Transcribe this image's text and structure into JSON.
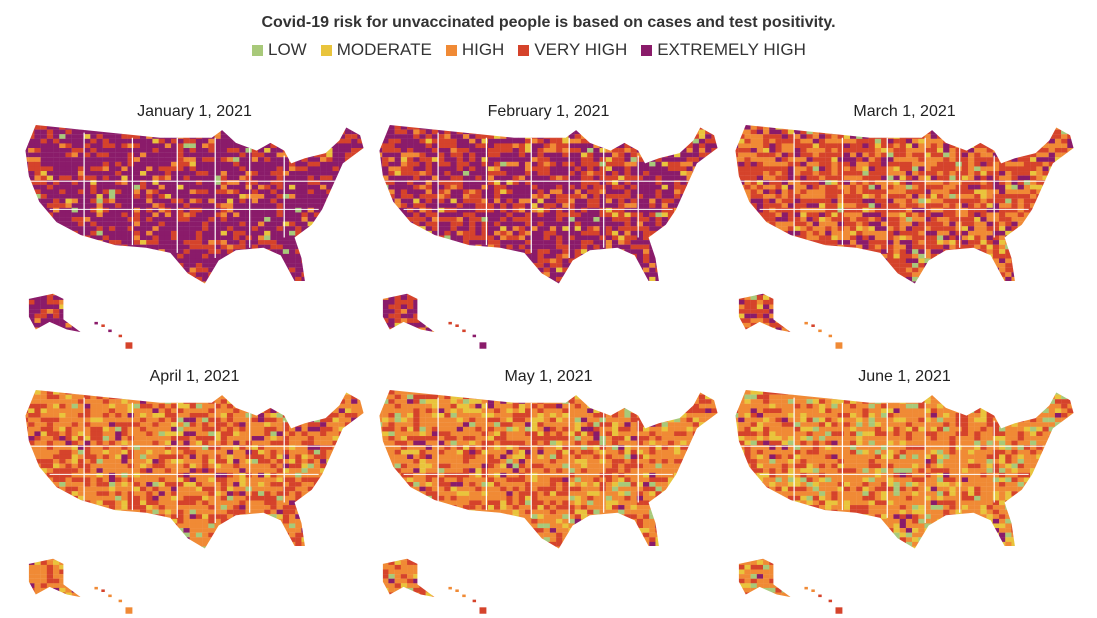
{
  "title": "Covid-19 risk for unvaccinated people is based on cases and test positivity.",
  "legend": [
    {
      "label": "LOW",
      "color": "#a8c97a"
    },
    {
      "label": "MODERATE",
      "color": "#e9c43c"
    },
    {
      "label": "HIGH",
      "color": "#f08a35"
    },
    {
      "label": "VERY HIGH",
      "color": "#d5432b"
    },
    {
      "label": "EXTREMELY HIGH",
      "color": "#8a1b6a"
    }
  ],
  "chart_data": {
    "type": "choropleth-small-multiples",
    "categories": [
      "LOW",
      "MODERATE",
      "HIGH",
      "VERY HIGH",
      "EXTREMELY HIGH"
    ],
    "maps": [
      {
        "date": "January 1, 2021",
        "approx_share": [
          0.01,
          0.02,
          0.07,
          0.25,
          0.65
        ]
      },
      {
        "date": "February 1, 2021",
        "approx_share": [
          0.01,
          0.03,
          0.1,
          0.36,
          0.5
        ]
      },
      {
        "date": "March 1, 2021",
        "approx_share": [
          0.02,
          0.06,
          0.3,
          0.45,
          0.17
        ]
      },
      {
        "date": "April 1, 2021",
        "approx_share": [
          0.04,
          0.1,
          0.5,
          0.3,
          0.06
        ]
      },
      {
        "date": "May 1, 2021",
        "approx_share": [
          0.05,
          0.12,
          0.5,
          0.28,
          0.05
        ]
      },
      {
        "date": "June 1, 2021",
        "approx_share": [
          0.08,
          0.15,
          0.55,
          0.2,
          0.02
        ]
      }
    ]
  }
}
